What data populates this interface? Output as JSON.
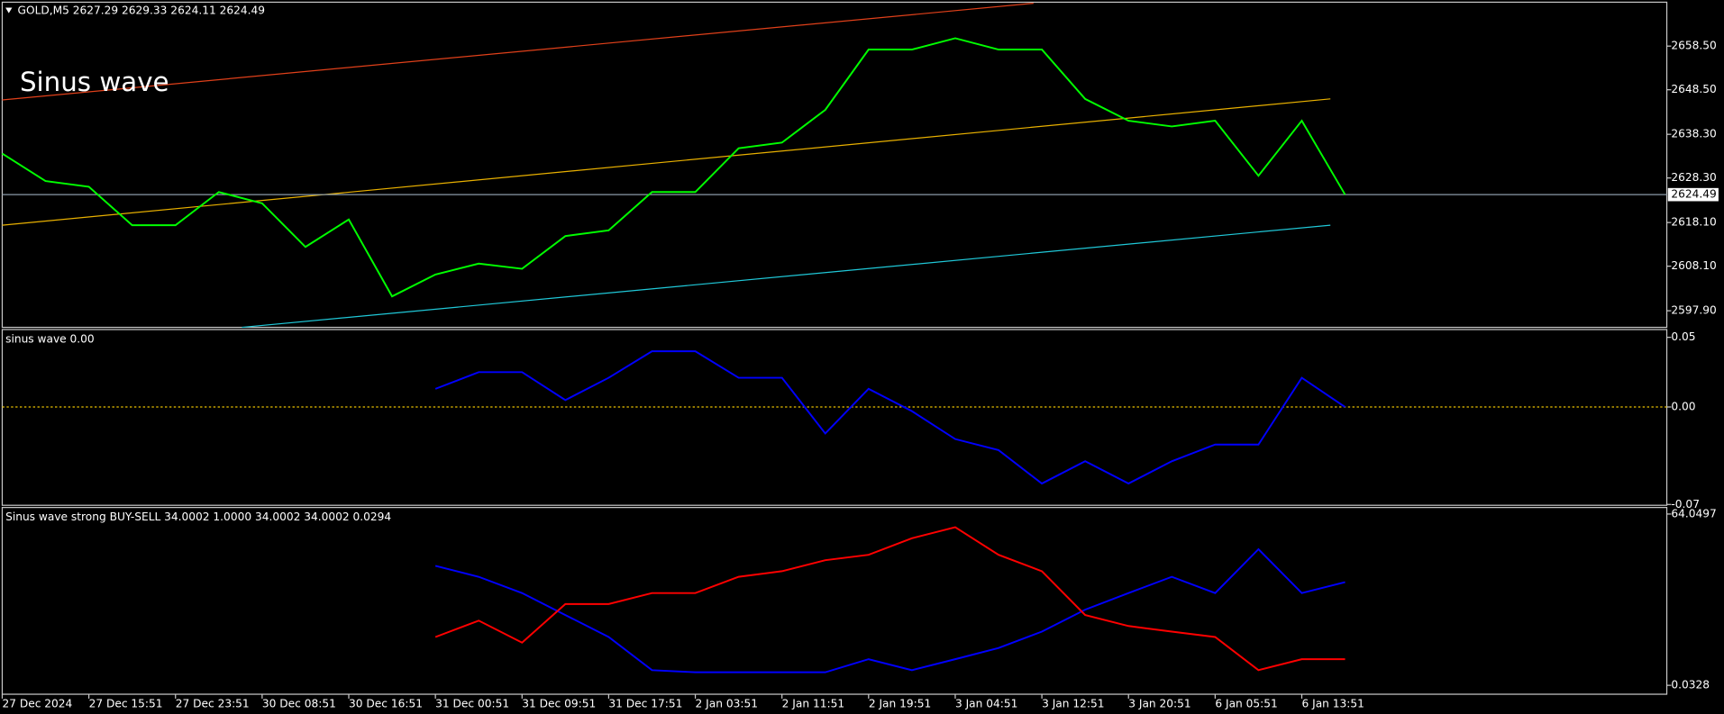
{
  "chart_data": [
    {
      "type": "line",
      "title": "GOLD,M5  2627.29 2629.33 2624.11 2624.49",
      "annotation": "Sinus wave",
      "ylim": [
        2594.1,
        2668.3
      ],
      "yticks": [
        {
          "value": 2658.5,
          "label": "2658.50"
        },
        {
          "value": 2648.5,
          "label": "2648.50"
        },
        {
          "value": 2638.3,
          "label": "2638.30"
        },
        {
          "value": 2628.3,
          "label": "2628.30"
        },
        {
          "value": 2618.1,
          "label": "2618.10"
        },
        {
          "value": 2608.1,
          "label": "2608.10"
        },
        {
          "value": 2597.9,
          "label": "2597.90"
        }
      ],
      "last_price": 2624.49,
      "series": [
        {
          "color": "#00ff00",
          "values": [
            2633.9,
            2627.6,
            2626.3,
            2617.5,
            2617.5,
            2625.1,
            2622.5,
            2612.5,
            2618.8,
            2601.2,
            2606.2,
            2608.7,
            2607.5,
            2615,
            2616.3,
            2625.1,
            2625.1,
            2635.1,
            2636.4,
            2643.9,
            2657.7,
            2657.7,
            2660.3,
            2657.7,
            2657.7,
            2646.4,
            2641.4,
            2640.1,
            2641.4,
            2628.8,
            2641.4,
            2624.49
          ]
        }
      ]
    },
    {
      "type": "line",
      "title": "sinus wave 0.00",
      "ylim": [
        -0.0706,
        0.0556
      ],
      "yticks": [
        0.05,
        {
          "value": 0,
          "label": "0.00"
        },
        -0.07
      ],
      "hline": 0,
      "series": [
        {
          "color": "#0000ff",
          "values": [
            null,
            null,
            null,
            null,
            null,
            null,
            null,
            null,
            null,
            null,
            0.013,
            0.025,
            0.025,
            0.005,
            0.021,
            0.04,
            0.04,
            0.021,
            0.021,
            -0.019,
            0.013,
            -0.003,
            -0.023,
            -0.031,
            -0.055,
            -0.039,
            -0.055,
            -0.039,
            -0.027,
            -0.027,
            0.021,
            0.0
          ]
        }
      ]
    },
    {
      "type": "line",
      "title": "Sinus wave strong BUY-SELL 34.0002 1.0000 34.0002 34.0002 0.0294",
      "ylim": [
        -3.3,
        66.5
      ],
      "yticks": [
        64.0497,
        0.0328
      ],
      "categories": [
        "27 Dec 2024",
        null,
        "27 Dec 15:51",
        null,
        "27 Dec 23:51",
        null,
        "30 Dec 08:51",
        null,
        "30 Dec 16:51",
        null,
        "31 Dec 00:51",
        null,
        "31 Dec 09:51",
        null,
        "31 Dec 17:51",
        null,
        "2 Jan 03:51",
        null,
        "2 Jan 11:51",
        null,
        "2 Jan 19:51",
        null,
        "3 Jan 04:51",
        null,
        "3 Jan 12:51",
        null,
        "3 Jan 20:51",
        null,
        "6 Jan 05:51",
        null,
        "6 Jan 13:51",
        null
      ],
      "series": [
        {
          "color": "#0000ff",
          "values": [
            null,
            null,
            null,
            null,
            null,
            null,
            null,
            null,
            null,
            null,
            44.7,
            40.6,
            34.5,
            26.3,
            18.1,
            5.7,
            4.9,
            4.9,
            4.9,
            4.9,
            9.8,
            5.7,
            9.8,
            14,
            20.1,
            28.3,
            34.5,
            40.6,
            34.5,
            50.9,
            34.5,
            38.6
          ]
        },
        {
          "color": "#ff0000",
          "values": [
            null,
            null,
            null,
            null,
            null,
            null,
            null,
            null,
            null,
            null,
            18.1,
            24.2,
            16,
            30.4,
            30.4,
            34.5,
            34.5,
            40.6,
            42.7,
            46.8,
            48.8,
            55,
            59.1,
            48.8,
            42.7,
            26.3,
            22.2,
            20.1,
            18.1,
            5.7,
            9.8,
            9.8
          ]
        }
      ]
    }
  ]
}
